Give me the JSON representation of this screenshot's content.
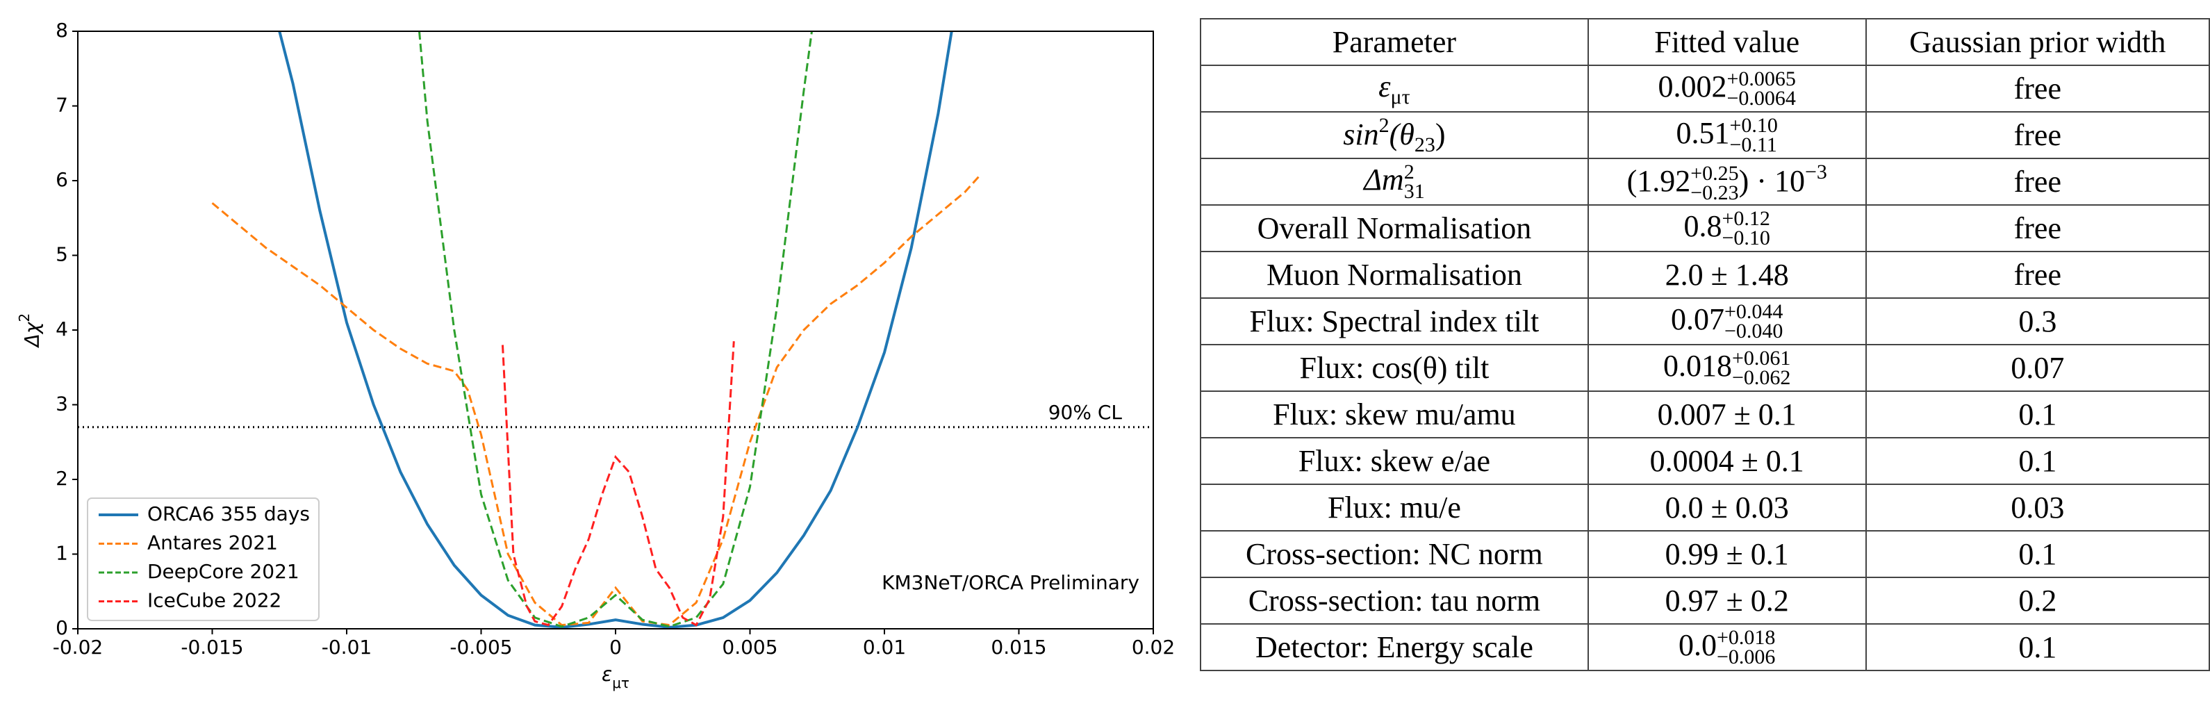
{
  "chart_data": {
    "type": "line",
    "xlabel": [
      {
        "text": "ε"
      },
      {
        "sub": "μτ"
      }
    ],
    "ylabel": [
      {
        "text": "Δχ"
      },
      {
        "sup": "2"
      }
    ],
    "xlim": [
      -0.02,
      0.02
    ],
    "ylim": [
      0,
      8
    ],
    "xticks": [
      -0.02,
      -0.015,
      -0.01,
      -0.005,
      0,
      0.005,
      0.01,
      0.015,
      0.02
    ],
    "yticks": [
      0,
      1,
      2,
      3,
      4,
      5,
      6,
      7,
      8
    ],
    "legend": "lower left",
    "reference_line": {
      "y": 2.7,
      "label": "90% CL"
    },
    "annotation": "KM3NeT/ORCA Preliminary",
    "series": [
      {
        "name": "ORCA6 355 days",
        "color": "#1f77b4",
        "dashed": false,
        "x": [
          -0.0125,
          -0.012,
          -0.011,
          -0.01,
          -0.009,
          -0.008,
          -0.007,
          -0.006,
          -0.005,
          -0.004,
          -0.003,
          -0.002,
          -0.001,
          0,
          0.001,
          0.002,
          0.003,
          0.004,
          0.005,
          0.006,
          0.007,
          0.008,
          0.009,
          0.01,
          0.011,
          0.012,
          0.0125
        ],
        "values": [
          8,
          7.3,
          5.6,
          4.1,
          3.0,
          2.1,
          1.4,
          0.85,
          0.45,
          0.18,
          0.05,
          0.02,
          0.06,
          0.12,
          0.06,
          0.02,
          0.05,
          0.15,
          0.38,
          0.75,
          1.25,
          1.85,
          2.7,
          3.7,
          5.1,
          6.9,
          8
        ]
      },
      {
        "name": "Antares 2021",
        "color": "#ff7f0e",
        "dashed": true,
        "x": [
          -0.015,
          -0.014,
          -0.013,
          -0.012,
          -0.011,
          -0.01,
          -0.009,
          -0.008,
          -0.007,
          -0.006,
          -0.0055,
          -0.005,
          -0.0045,
          -0.004,
          -0.003,
          -0.002,
          -0.001,
          0,
          0.001,
          0.002,
          0.003,
          0.004,
          0.005,
          0.006,
          0.007,
          0.008,
          0.009,
          0.01,
          0.011,
          0.012,
          0.013,
          0.0135
        ],
        "values": [
          5.7,
          5.4,
          5.1,
          4.85,
          4.6,
          4.3,
          4.0,
          3.75,
          3.55,
          3.45,
          3.2,
          2.6,
          1.8,
          1.0,
          0.35,
          0.05,
          0.08,
          0.55,
          0.1,
          0.05,
          0.35,
          1.2,
          2.5,
          3.5,
          4.0,
          4.35,
          4.6,
          4.9,
          5.25,
          5.55,
          5.85,
          6.05
        ]
      },
      {
        "name": "DeepCore 2021",
        "color": "#2ca02c",
        "dashed": true,
        "x": [
          -0.0073,
          -0.007,
          -0.006,
          -0.005,
          -0.004,
          -0.003,
          -0.002,
          -0.001,
          0,
          0.001,
          0.002,
          0.003,
          0.004,
          0.005,
          0.006,
          0.007,
          0.0073
        ],
        "values": [
          8,
          6.8,
          4.0,
          1.8,
          0.65,
          0.15,
          0.03,
          0.15,
          0.45,
          0.12,
          0.03,
          0.15,
          0.6,
          1.9,
          4.3,
          7.2,
          8
        ]
      },
      {
        "name": "IceCube 2022",
        "color": "#ff2020",
        "dashed": true,
        "x": [
          -0.0042,
          -0.0038,
          -0.0033,
          -0.003,
          -0.0025,
          -0.002,
          -0.0015,
          -0.001,
          -0.0005,
          0,
          0.0005,
          0.001,
          0.0015,
          0.002,
          0.0025,
          0.003,
          0.0035,
          0.004,
          0.0044
        ],
        "values": [
          3.8,
          1.0,
          0.3,
          0.1,
          0.05,
          0.3,
          0.8,
          1.2,
          1.8,
          2.3,
          2.1,
          1.5,
          0.8,
          0.55,
          0.15,
          0.05,
          0.4,
          1.5,
          3.85
        ]
      }
    ]
  },
  "table": {
    "rows": [
      [
        [
          {
            "text": "Parameter"
          }
        ],
        [
          {
            "text": "Fitted value"
          }
        ],
        [
          {
            "text": "Gaussian prior width"
          }
        ]
      ],
      [
        [
          {
            "text": "ε",
            "italic": true
          },
          {
            "sub": "μτ"
          }
        ],
        [
          {
            "text": "0.002"
          },
          {
            "sup": "+0.0065",
            "sub": "−0.0064"
          }
        ],
        [
          {
            "text": "free"
          }
        ]
      ],
      [
        [
          {
            "text": "sin",
            "italic": true
          },
          {
            "sup": "2"
          },
          {
            "text": "(θ",
            "italic": true
          },
          {
            "sub": "23"
          },
          {
            "text": ")"
          }
        ],
        [
          {
            "text": "0.51"
          },
          {
            "sup": "+0.10",
            "sub": "−0.11"
          }
        ],
        [
          {
            "text": "free"
          }
        ]
      ],
      [
        [
          {
            "text": "Δm",
            "italic": true
          },
          {
            "sup": "2",
            "sub": "31"
          }
        ],
        [
          {
            "text": "(1.92"
          },
          {
            "sup": "+0.25",
            "sub": "−0.23"
          },
          {
            "text": ") · 10"
          },
          {
            "sup": "−3"
          }
        ],
        [
          {
            "text": "free"
          }
        ]
      ],
      [
        [
          {
            "text": "Overall Normalisation"
          }
        ],
        [
          {
            "text": "0.8"
          },
          {
            "sup": "+0.12",
            "sub": "−0.10"
          }
        ],
        [
          {
            "text": "free"
          }
        ]
      ],
      [
        [
          {
            "text": "Muon Normalisation"
          }
        ],
        [
          {
            "text": "2.0 ± 1.48"
          }
        ],
        [
          {
            "text": "free"
          }
        ]
      ],
      [
        [
          {
            "text": "Flux: Spectral index tilt"
          }
        ],
        [
          {
            "text": "0.07"
          },
          {
            "sup": "+0.044",
            "sub": "−0.040"
          }
        ],
        [
          {
            "text": "0.3"
          }
        ]
      ],
      [
        [
          {
            "text": "Flux: cos(θ) tilt"
          }
        ],
        [
          {
            "text": "0.018"
          },
          {
            "sup": "+0.061",
            "sub": "−0.062"
          }
        ],
        [
          {
            "text": "0.07"
          }
        ]
      ],
      [
        [
          {
            "text": "Flux: skew mu/amu"
          }
        ],
        [
          {
            "text": "0.007 ± 0.1"
          }
        ],
        [
          {
            "text": "0.1"
          }
        ]
      ],
      [
        [
          {
            "text": "Flux: skew e/ae"
          }
        ],
        [
          {
            "text": "0.0004 ± 0.1"
          }
        ],
        [
          {
            "text": "0.1"
          }
        ]
      ],
      [
        [
          {
            "text": "Flux: mu/e"
          }
        ],
        [
          {
            "text": "0.0 ± 0.03"
          }
        ],
        [
          {
            "text": "0.03"
          }
        ]
      ],
      [
        [
          {
            "text": "Cross-section: NC norm"
          }
        ],
        [
          {
            "text": "0.99 ± 0.1"
          }
        ],
        [
          {
            "text": "0.1"
          }
        ]
      ],
      [
        [
          {
            "text": "Cross-section: tau norm"
          }
        ],
        [
          {
            "text": "0.97 ± 0.2"
          }
        ],
        [
          {
            "text": "0.2"
          }
        ]
      ],
      [
        [
          {
            "text": "Detector: Energy scale"
          }
        ],
        [
          {
            "text": "0.0"
          },
          {
            "sup": "+0.018",
            "sub": "−0.006"
          }
        ],
        [
          {
            "text": "0.1"
          }
        ]
      ]
    ]
  }
}
